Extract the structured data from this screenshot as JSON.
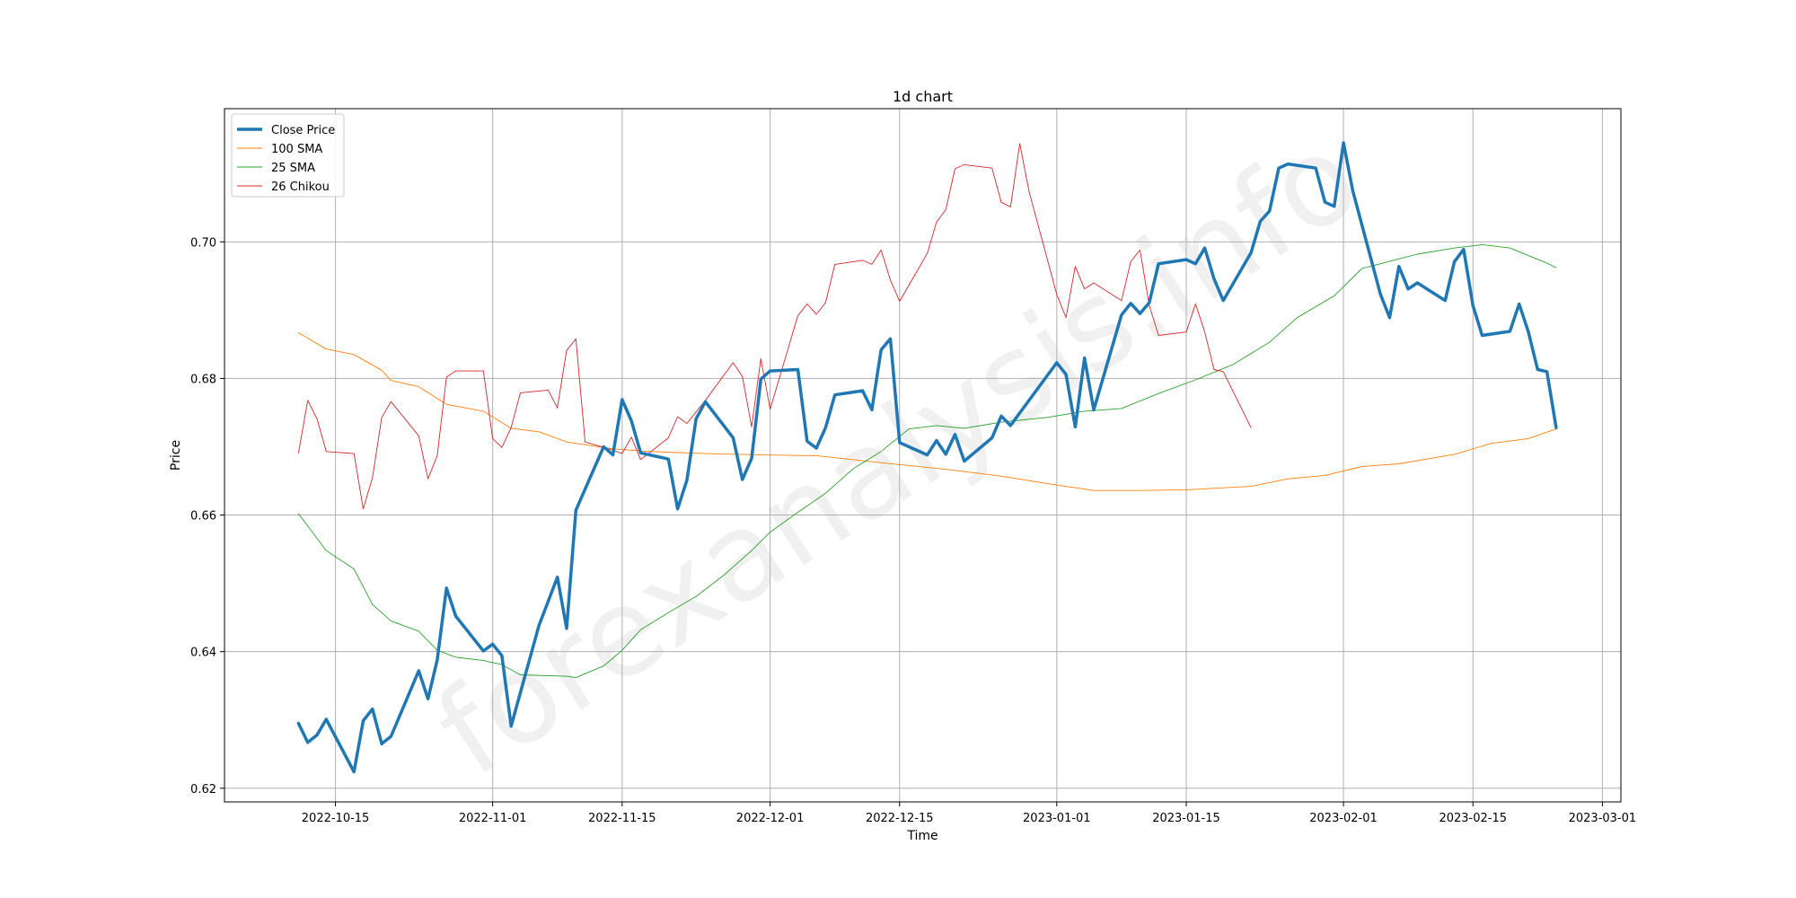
{
  "chart_data": {
    "type": "line",
    "title": "1d chart",
    "xlabel": "Time",
    "ylabel": "Price",
    "watermark": "forexanalysis.info",
    "xlim": [
      "2022-10-03",
      "2023-03-03"
    ],
    "ylim": [
      0.618,
      0.7195
    ],
    "grid": true,
    "legend_position": "upper-left",
    "x_ticks": [
      "2022-10-15",
      "2022-11-01",
      "2022-11-15",
      "2022-12-01",
      "2022-12-15",
      "2023-01-01",
      "2023-01-15",
      "2023-02-01",
      "2023-02-15",
      "2023-03-01"
    ],
    "y_ticks": [
      0.62,
      0.64,
      0.66,
      0.68,
      0.7
    ],
    "y_tick_labels": [
      "0.62",
      "0.64",
      "0.66",
      "0.68",
      "0.70"
    ],
    "series": [
      {
        "name": "Close Price",
        "color": "#1f77b4",
        "width": "thick",
        "points": [
          [
            "2022-10-11",
            0.6295
          ],
          [
            "2022-10-12",
            0.6267
          ],
          [
            "2022-10-13",
            0.6278
          ],
          [
            "2022-10-14",
            0.6301
          ],
          [
            "2022-10-17",
            0.6224
          ],
          [
            "2022-10-18",
            0.6299
          ],
          [
            "2022-10-19",
            0.6316
          ],
          [
            "2022-10-20",
            0.6265
          ],
          [
            "2022-10-21",
            0.6276
          ],
          [
            "2022-10-24",
            0.6372
          ],
          [
            "2022-10-25",
            0.6331
          ],
          [
            "2022-10-26",
            0.6388
          ],
          [
            "2022-10-27",
            0.6493
          ],
          [
            "2022-10-28",
            0.6452
          ],
          [
            "2022-10-31",
            0.6401
          ],
          [
            "2022-11-01",
            0.6411
          ],
          [
            "2022-11-02",
            0.6394
          ],
          [
            "2022-11-03",
            0.6291
          ],
          [
            "2022-11-06",
            0.6438
          ],
          [
            "2022-11-08",
            0.6509
          ],
          [
            "2022-11-09",
            0.6434
          ],
          [
            "2022-11-10",
            0.6607
          ],
          [
            "2022-11-13",
            0.67
          ],
          [
            "2022-11-14",
            0.6688
          ],
          [
            "2022-11-15",
            0.6769
          ],
          [
            "2022-11-16",
            0.6738
          ],
          [
            "2022-11-17",
            0.6691
          ],
          [
            "2022-11-20",
            0.6682
          ],
          [
            "2022-11-21",
            0.6609
          ],
          [
            "2022-11-22",
            0.6651
          ],
          [
            "2022-11-23",
            0.6741
          ],
          [
            "2022-11-24",
            0.6766
          ],
          [
            "2022-11-27",
            0.6713
          ],
          [
            "2022-11-28",
            0.6652
          ],
          [
            "2022-11-29",
            0.6683
          ],
          [
            "2022-11-30",
            0.6799
          ],
          [
            "2022-12-01",
            0.6811
          ],
          [
            "2022-12-04",
            0.6813
          ],
          [
            "2022-12-05",
            0.6708
          ],
          [
            "2022-12-06",
            0.6698
          ],
          [
            "2022-12-07",
            0.6728
          ],
          [
            "2022-12-08",
            0.6776
          ],
          [
            "2022-12-11",
            0.6782
          ],
          [
            "2022-12-12",
            0.6754
          ],
          [
            "2022-12-13",
            0.6842
          ],
          [
            "2022-12-14",
            0.6858
          ],
          [
            "2022-12-15",
            0.6706
          ],
          [
            "2022-12-18",
            0.6688
          ],
          [
            "2022-12-19",
            0.6709
          ],
          [
            "2022-12-20",
            0.6689
          ],
          [
            "2022-12-21",
            0.6718
          ],
          [
            "2022-12-22",
            0.6679
          ],
          [
            "2022-12-25",
            0.6713
          ],
          [
            "2022-12-26",
            0.6745
          ],
          [
            "2022-12-27",
            0.6731
          ],
          [
            "2023-01-01",
            0.6823
          ],
          [
            "2023-01-02",
            0.6806
          ],
          [
            "2023-01-03",
            0.6729
          ],
          [
            "2023-01-04",
            0.683
          ],
          [
            "2023-01-05",
            0.6754
          ],
          [
            "2023-01-08",
            0.6893
          ],
          [
            "2023-01-09",
            0.691
          ],
          [
            "2023-01-10",
            0.6895
          ],
          [
            "2023-01-11",
            0.6911
          ],
          [
            "2023-01-12",
            0.6968
          ],
          [
            "2023-01-15",
            0.6974
          ],
          [
            "2023-01-16",
            0.6968
          ],
          [
            "2023-01-17",
            0.6991
          ],
          [
            "2023-01-18",
            0.6946
          ],
          [
            "2023-01-19",
            0.6914
          ],
          [
            "2023-01-22",
            0.6984
          ],
          [
            "2023-01-23",
            0.703
          ],
          [
            "2023-01-24",
            0.7045
          ],
          [
            "2023-01-25",
            0.7108
          ],
          [
            "2023-01-26",
            0.7114
          ],
          [
            "2023-01-29",
            0.7108
          ],
          [
            "2023-01-30",
            0.7058
          ],
          [
            "2023-01-31",
            0.7052
          ],
          [
            "2023-02-01",
            0.7145
          ],
          [
            "2023-02-02",
            0.7075
          ],
          [
            "2023-02-05",
            0.6923
          ],
          [
            "2023-02-06",
            0.6889
          ],
          [
            "2023-02-07",
            0.6964
          ],
          [
            "2023-02-08",
            0.6931
          ],
          [
            "2023-02-09",
            0.694
          ],
          [
            "2023-02-12",
            0.6914
          ],
          [
            "2023-02-13",
            0.6971
          ],
          [
            "2023-02-14",
            0.6989
          ],
          [
            "2023-02-15",
            0.6907
          ],
          [
            "2023-02-16",
            0.6863
          ],
          [
            "2023-02-19",
            0.6869
          ],
          [
            "2023-02-20",
            0.6909
          ],
          [
            "2023-02-21",
            0.6868
          ],
          [
            "2023-02-22",
            0.6813
          ],
          [
            "2023-02-23",
            0.681
          ],
          [
            "2023-02-24",
            0.6728
          ]
        ]
      },
      {
        "name": "100 SMA",
        "color": "#ff7f0e",
        "width": "thin",
        "points": [
          [
            "2022-10-11",
            0.6867
          ],
          [
            "2022-10-14",
            0.6843
          ],
          [
            "2022-10-17",
            0.6835
          ],
          [
            "2022-10-20",
            0.6812
          ],
          [
            "2022-10-21",
            0.6797
          ],
          [
            "2022-10-24",
            0.6788
          ],
          [
            "2022-10-27",
            0.6762
          ],
          [
            "2022-10-31",
            0.6752
          ],
          [
            "2022-11-03",
            0.6727
          ],
          [
            "2022-11-06",
            0.6722
          ],
          [
            "2022-11-09",
            0.6707
          ],
          [
            "2022-11-14",
            0.6697
          ],
          [
            "2022-11-18",
            0.6693
          ],
          [
            "2022-11-24",
            0.669
          ],
          [
            "2022-11-30",
            0.6688
          ],
          [
            "2022-12-06",
            0.6687
          ],
          [
            "2022-12-12",
            0.6678
          ],
          [
            "2022-12-20",
            0.6667
          ],
          [
            "2022-12-26",
            0.6657
          ],
          [
            "2022-12-31",
            0.6646
          ],
          [
            "2023-01-05",
            0.6636
          ],
          [
            "2023-01-10",
            0.6636
          ],
          [
            "2023-01-15",
            0.6637
          ],
          [
            "2023-01-22",
            0.6642
          ],
          [
            "2023-01-26",
            0.6653
          ],
          [
            "2023-01-30",
            0.6658
          ],
          [
            "2023-02-03",
            0.6671
          ],
          [
            "2023-02-07",
            0.6675
          ],
          [
            "2023-02-13",
            0.6689
          ],
          [
            "2023-02-17",
            0.6705
          ],
          [
            "2023-02-21",
            0.6712
          ],
          [
            "2023-02-24",
            0.6726
          ]
        ]
      },
      {
        "name": "25 SMA",
        "color": "#2ca02c",
        "width": "thin",
        "points": [
          [
            "2022-10-11",
            0.6602
          ],
          [
            "2022-10-14",
            0.6548
          ],
          [
            "2022-10-17",
            0.6521
          ],
          [
            "2022-10-19",
            0.6469
          ],
          [
            "2022-10-21",
            0.6445
          ],
          [
            "2022-10-24",
            0.643
          ],
          [
            "2022-10-26",
            0.6402
          ],
          [
            "2022-10-28",
            0.6392
          ],
          [
            "2022-10-31",
            0.6387
          ],
          [
            "2022-11-02",
            0.6381
          ],
          [
            "2022-11-04",
            0.6366
          ],
          [
            "2022-11-09",
            0.6364
          ],
          [
            "2022-11-10",
            0.6362
          ],
          [
            "2022-11-13",
            0.6379
          ],
          [
            "2022-11-15",
            0.6402
          ],
          [
            "2022-11-17",
            0.6432
          ],
          [
            "2022-11-20",
            0.6457
          ],
          [
            "2022-11-23",
            0.6481
          ],
          [
            "2022-11-26",
            0.6512
          ],
          [
            "2022-11-29",
            0.6548
          ],
          [
            "2022-12-01",
            0.6575
          ],
          [
            "2022-12-04",
            0.6604
          ],
          [
            "2022-12-07",
            0.6632
          ],
          [
            "2022-12-10",
            0.6668
          ],
          [
            "2022-12-13",
            0.6693
          ],
          [
            "2022-12-16",
            0.6726
          ],
          [
            "2022-12-19",
            0.6731
          ],
          [
            "2022-12-22",
            0.6727
          ],
          [
            "2022-12-26",
            0.6736
          ],
          [
            "2022-12-31",
            0.6743
          ],
          [
            "2023-01-04",
            0.6752
          ],
          [
            "2023-01-08",
            0.6756
          ],
          [
            "2023-01-12",
            0.6778
          ],
          [
            "2023-01-16",
            0.6798
          ],
          [
            "2023-01-20",
            0.682
          ],
          [
            "2023-01-24",
            0.6853
          ],
          [
            "2023-01-27",
            0.6889
          ],
          [
            "2023-01-31",
            0.6921
          ],
          [
            "2023-02-03",
            0.6961
          ],
          [
            "2023-02-07",
            0.6975
          ],
          [
            "2023-02-09",
            0.6982
          ],
          [
            "2023-02-13",
            0.6991
          ],
          [
            "2023-02-16",
            0.6996
          ],
          [
            "2023-02-19",
            0.6991
          ],
          [
            "2023-02-23",
            0.6969
          ],
          [
            "2023-02-24",
            0.6962
          ]
        ]
      },
      {
        "name": "26 Chikou",
        "color": "#d62728",
        "width": "thin",
        "points": [
          [
            "2022-10-11",
            0.6691
          ],
          [
            "2022-10-12",
            0.6768
          ],
          [
            "2022-10-13",
            0.6741
          ],
          [
            "2022-10-14",
            0.6693
          ],
          [
            "2022-10-17",
            0.669
          ],
          [
            "2022-10-18",
            0.6609
          ],
          [
            "2022-10-19",
            0.6655
          ],
          [
            "2022-10-20",
            0.6743
          ],
          [
            "2022-10-21",
            0.6766
          ],
          [
            "2022-10-24",
            0.6716
          ],
          [
            "2022-10-25",
            0.6653
          ],
          [
            "2022-10-26",
            0.6687
          ],
          [
            "2022-10-27",
            0.6802
          ],
          [
            "2022-10-28",
            0.6811
          ],
          [
            "2022-10-31",
            0.6811
          ],
          [
            "2022-11-01",
            0.6712
          ],
          [
            "2022-11-02",
            0.6699
          ],
          [
            "2022-11-03",
            0.6728
          ],
          [
            "2022-11-04",
            0.6779
          ],
          [
            "2022-11-07",
            0.6783
          ],
          [
            "2022-11-08",
            0.6757
          ],
          [
            "2022-11-09",
            0.6841
          ],
          [
            "2022-11-10",
            0.6858
          ],
          [
            "2022-11-11",
            0.6707
          ],
          [
            "2022-11-14",
            0.6695
          ],
          [
            "2022-11-15",
            0.669
          ],
          [
            "2022-11-16",
            0.6714
          ],
          [
            "2022-11-17",
            0.6681
          ],
          [
            "2022-11-20",
            0.6713
          ],
          [
            "2022-11-21",
            0.6744
          ],
          [
            "2022-11-22",
            0.6734
          ],
          [
            "2022-11-24",
            0.6768
          ],
          [
            "2022-11-27",
            0.6823
          ],
          [
            "2022-11-28",
            0.6803
          ],
          [
            "2022-11-29",
            0.6729
          ],
          [
            "2022-11-30",
            0.6829
          ],
          [
            "2022-12-01",
            0.6755
          ],
          [
            "2022-12-04",
            0.6892
          ],
          [
            "2022-12-05",
            0.6909
          ],
          [
            "2022-12-06",
            0.6894
          ],
          [
            "2022-12-07",
            0.6911
          ],
          [
            "2022-12-08",
            0.6967
          ],
          [
            "2022-12-11",
            0.6973
          ],
          [
            "2022-12-12",
            0.6967
          ],
          [
            "2022-12-13",
            0.6988
          ],
          [
            "2022-12-14",
            0.6944
          ],
          [
            "2022-12-15",
            0.6913
          ],
          [
            "2022-12-18",
            0.6983
          ],
          [
            "2022-12-19",
            0.7029
          ],
          [
            "2022-12-20",
            0.7047
          ],
          [
            "2022-12-21",
            0.7107
          ],
          [
            "2022-12-22",
            0.7113
          ],
          [
            "2022-12-25",
            0.7108
          ],
          [
            "2022-12-26",
            0.7058
          ],
          [
            "2022-12-27",
            0.7051
          ],
          [
            "2022-12-28",
            0.7144
          ],
          [
            "2022-12-29",
            0.7074
          ],
          [
            "2023-01-01",
            0.6923
          ],
          [
            "2023-01-02",
            0.6889
          ],
          [
            "2023-01-03",
            0.6964
          ],
          [
            "2023-01-04",
            0.6931
          ],
          [
            "2023-01-05",
            0.694
          ],
          [
            "2023-01-08",
            0.6914
          ],
          [
            "2023-01-09",
            0.6971
          ],
          [
            "2023-01-10",
            0.6988
          ],
          [
            "2023-01-11",
            0.6907
          ],
          [
            "2023-01-12",
            0.6863
          ],
          [
            "2023-01-15",
            0.6868
          ],
          [
            "2023-01-16",
            0.6909
          ],
          [
            "2023-01-17",
            0.6868
          ],
          [
            "2023-01-18",
            0.6813
          ],
          [
            "2023-01-19",
            0.681
          ],
          [
            "2023-01-22",
            0.6728
          ]
        ]
      }
    ]
  }
}
